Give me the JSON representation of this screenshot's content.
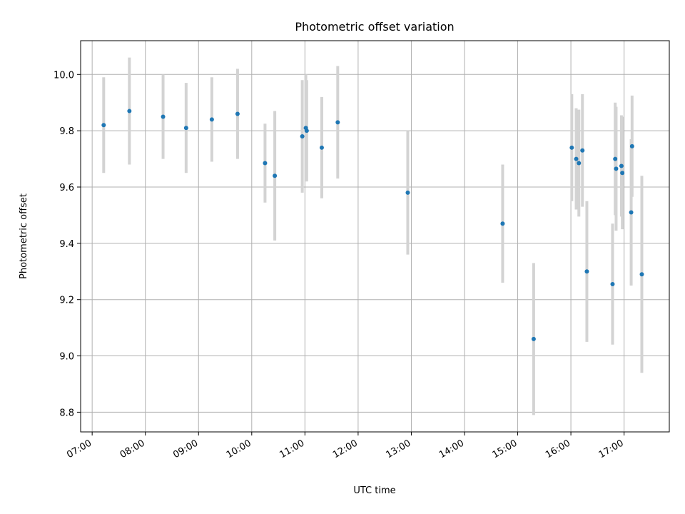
{
  "chart_data": {
    "type": "scatter",
    "title": "Photometric offset variation",
    "xlabel": "UTC time",
    "ylabel": "Photometric offset",
    "x_unit": "hours UTC",
    "xlim": [
      "06:47",
      "17:51"
    ],
    "ylim": [
      8.73,
      10.12
    ],
    "grid": true,
    "x_ticks": [
      "07:00",
      "08:00",
      "09:00",
      "10:00",
      "11:00",
      "12:00",
      "13:00",
      "14:00",
      "15:00",
      "16:00",
      "17:00"
    ],
    "y_ticks": [
      "8.8",
      "9.0",
      "9.2",
      "9.4",
      "9.6",
      "9.8",
      "10.0"
    ],
    "colors": {
      "point": "#1f77b4",
      "errorbar": "#d3d3d3",
      "grid": "#b0b0b0"
    },
    "points": [
      {
        "x": "07:13",
        "y": 9.82,
        "err": 0.17
      },
      {
        "x": "07:42",
        "y": 9.87,
        "err": 0.19
      },
      {
        "x": "08:20",
        "y": 9.85,
        "err": 0.15
      },
      {
        "x": "08:46",
        "y": 9.81,
        "err": 0.16
      },
      {
        "x": "09:15",
        "y": 9.84,
        "err": 0.15
      },
      {
        "x": "09:44",
        "y": 9.86,
        "err": 0.16
      },
      {
        "x": "10:15",
        "y": 9.685,
        "err": 0.14
      },
      {
        "x": "10:26",
        "y": 9.64,
        "err": 0.23
      },
      {
        "x": "10:57",
        "y": 9.78,
        "err": 0.2
      },
      {
        "x": "11:01",
        "y": 9.81,
        "err": 0.19
      },
      {
        "x": "11:02",
        "y": 9.8,
        "err": 0.18
      },
      {
        "x": "11:19",
        "y": 9.74,
        "err": 0.18
      },
      {
        "x": "11:37",
        "y": 9.83,
        "err": 0.2
      },
      {
        "x": "12:56",
        "y": 9.58,
        "err": 0.22
      },
      {
        "x": "14:43",
        "y": 9.47,
        "err": 0.21
      },
      {
        "x": "15:18",
        "y": 9.06,
        "err": 0.27
      },
      {
        "x": "16:01",
        "y": 9.74,
        "err": 0.19
      },
      {
        "x": "16:06",
        "y": 9.7,
        "err": 0.18
      },
      {
        "x": "16:09",
        "y": 9.685,
        "err": 0.19
      },
      {
        "x": "16:13",
        "y": 9.73,
        "err": 0.2
      },
      {
        "x": "16:18",
        "y": 9.3,
        "err": 0.25
      },
      {
        "x": "16:47",
        "y": 9.255,
        "err": 0.215
      },
      {
        "x": "16:50",
        "y": 9.7,
        "err": 0.2
      },
      {
        "x": "16:51",
        "y": 9.665,
        "err": 0.22
      },
      {
        "x": "16:57",
        "y": 9.675,
        "err": 0.18
      },
      {
        "x": "16:58",
        "y": 9.65,
        "err": 0.2
      },
      {
        "x": "17:08",
        "y": 9.51,
        "err": 0.26
      },
      {
        "x": "17:09",
        "y": 9.745,
        "err": 0.18
      },
      {
        "x": "17:20",
        "y": 9.29,
        "err": 0.35
      }
    ]
  }
}
